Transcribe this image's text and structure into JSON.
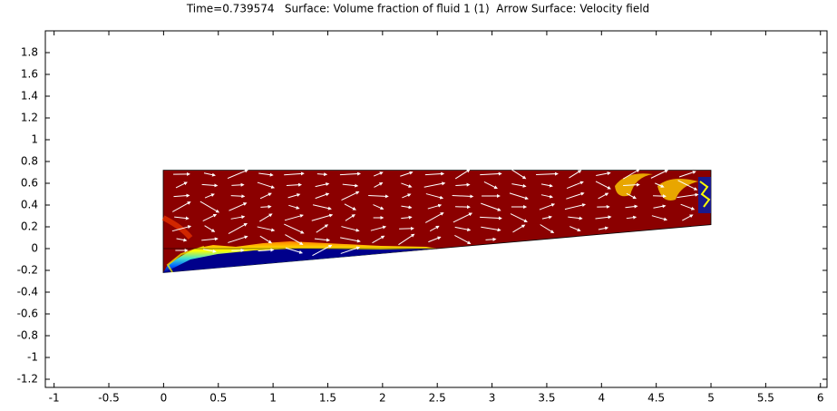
{
  "chart_data": {
    "type": "surface",
    "title": "Time=0.739574   Surface: Volume fraction of fluid 1 (1)  Arrow Surface: Velocity field",
    "xlim": [
      -1.08,
      6.06
    ],
    "ylim": [
      -1.275,
      2.0
    ],
    "xticks": [
      -1,
      -0.5,
      0,
      0.5,
      1,
      1.5,
      2,
      2.5,
      3,
      3.5,
      4,
      4.5,
      5,
      5.5,
      6
    ],
    "yticks": [
      -1.2,
      -1,
      -0.8,
      -0.6,
      -0.4,
      -0.2,
      0,
      0.2,
      0.4,
      0.6,
      0.8,
      1,
      1.2,
      1.4,
      1.6,
      1.8
    ]
  }
}
